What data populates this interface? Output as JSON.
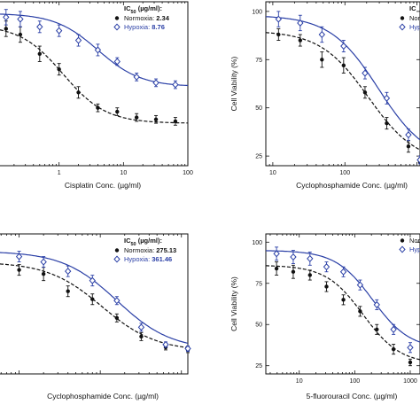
{
  "colors": {
    "normoxia": "#111111",
    "hypoxia": "#2a3fa6",
    "axis": "#111111"
  },
  "chart_data": [
    {
      "type": "scatter",
      "xlabel": "Cisplatin Conc. (µg/ml)",
      "ylabel": "",
      "xscale": "log",
      "xlim": [
        0.1,
        100
      ],
      "ylim": [
        20,
        105
      ],
      "xticks": [
        1,
        10,
        100
      ],
      "xtick_labels": [
        "1",
        "10",
        "100"
      ],
      "yticks": [],
      "ytick_labels": [],
      "legend": {
        "header": "IC",
        "header_sub": "50",
        "header_tail": " (µg/ml):",
        "placement": "top-right"
      },
      "series": [
        {
          "name": "Normoxia",
          "ic50": "2.34",
          "marker": "filled-circle",
          "x": [
            0.15,
            0.25,
            0.5,
            1,
            2,
            4,
            8,
            16,
            32,
            64
          ],
          "y": [
            91,
            88,
            78,
            70,
            58,
            50,
            48,
            45,
            44,
            43
          ],
          "err": [
            4,
            4,
            4,
            3,
            3,
            2,
            2,
            2,
            2,
            2
          ]
        },
        {
          "name": "Hypoxia",
          "ic50": "8.76",
          "marker": "open-diamond",
          "x": [
            0.15,
            0.25,
            0.5,
            1,
            2,
            4,
            8,
            16,
            32,
            64
          ],
          "y": [
            97,
            96,
            92,
            90,
            85,
            80,
            74,
            66,
            63,
            62
          ],
          "err": [
            4,
            4,
            3,
            3,
            3,
            3,
            2,
            2,
            2,
            2
          ]
        }
      ]
    },
    {
      "type": "scatter",
      "xlabel": "Cyclophosphamide Conc. (µg/ml)",
      "ylabel": "Cell Viability (%)",
      "xscale": "log",
      "xlim": [
        8,
        1100
      ],
      "ylim": [
        20,
        105
      ],
      "xticks": [
        10,
        100
      ],
      "xtick_labels": [
        "10",
        "100"
      ],
      "yticks": [
        25,
        50,
        75,
        100
      ],
      "ytick_labels": [
        "25",
        "50",
        "75",
        "100"
      ],
      "legend": {
        "header": "IC",
        "header_sub": "",
        "header_tail": "",
        "placement": "top-right"
      },
      "series": [
        {
          "name": "Normox",
          "ic50": "",
          "marker": "filled-circle",
          "x": [
            12,
            24,
            48,
            96,
            190,
            380,
            760,
            1100
          ],
          "y": [
            88,
            85,
            75,
            72,
            58,
            42,
            30,
            22
          ],
          "err": [
            3,
            3,
            4,
            4,
            3,
            3,
            3,
            2
          ]
        },
        {
          "name": "Hypox",
          "ic50": "",
          "marker": "open-diamond",
          "x": [
            12,
            24,
            48,
            96,
            190,
            380,
            760,
            1100
          ],
          "y": [
            96,
            94,
            88,
            82,
            68,
            55,
            36,
            23
          ],
          "err": [
            4,
            4,
            4,
            3,
            3,
            3,
            3,
            2
          ]
        }
      ]
    },
    {
      "type": "scatter",
      "xlabel": "Cyclophosphamide Conc. (µg/ml)",
      "ylabel": "",
      "xscale": "log",
      "xlim": [
        5,
        1200
      ],
      "ylim": [
        0,
        105
      ],
      "xticks": [
        10,
        100,
        1000
      ],
      "xtick_labels": [
        "",
        "",
        ""
      ],
      "yticks": [],
      "ytick_labels": [],
      "legend": {
        "header": "IC",
        "header_sub": "50",
        "header_tail": " (µg/ml):",
        "placement": "top-right"
      },
      "series": [
        {
          "name": "Normoxia",
          "ic50": "275.13",
          "marker": "filled-circle",
          "x": [
            5,
            10,
            20,
            40,
            80,
            160,
            320,
            640,
            1200
          ],
          "y": [
            82,
            78,
            75,
            62,
            56,
            42,
            28,
            20,
            18
          ],
          "err": [
            4,
            4,
            5,
            4,
            4,
            3,
            3,
            2,
            2
          ]
        },
        {
          "name": "Hypoxia",
          "ic50": "361.46",
          "marker": "open-diamond",
          "x": [
            5,
            10,
            20,
            40,
            80,
            160,
            320,
            640,
            1200
          ],
          "y": [
            90,
            88,
            84,
            77,
            70,
            55,
            35,
            22,
            19
          ],
          "err": [
            4,
            4,
            4,
            4,
            4,
            3,
            3,
            2,
            2
          ]
        }
      ]
    },
    {
      "type": "scatter",
      "xlabel": "5-fluorouracil Conc. (µg/ml)",
      "ylabel": "Cell Viability (%)",
      "xscale": "log",
      "xlim": [
        2.5,
        1500
      ],
      "ylim": [
        20,
        105
      ],
      "xticks": [
        10,
        100,
        1000
      ],
      "xtick_labels": [
        "10",
        "100",
        "1000"
      ],
      "yticks": [
        25,
        50,
        75,
        100
      ],
      "ytick_labels": [
        "25",
        "50",
        "75",
        "100"
      ],
      "legend": {
        "header": "",
        "header_sub": "",
        "header_tail": "",
        "placement": "top-right"
      },
      "series": [
        {
          "name": "Norm",
          "ic50": "",
          "marker": "filled-circle",
          "x": [
            3.9,
            7.8,
            15.6,
            31,
            62.5,
            125,
            250,
            500,
            1000
          ],
          "y": [
            84,
            82,
            80,
            73,
            65,
            58,
            47,
            35,
            27
          ],
          "err": [
            4,
            4,
            3,
            3,
            3,
            3,
            3,
            3,
            2
          ]
        },
        {
          "name": "Hypo",
          "ic50": "",
          "marker": "open-diamond",
          "x": [
            3.9,
            7.8,
            15.6,
            31,
            62.5,
            125,
            250,
            500,
            1000
          ],
          "y": [
            93,
            91,
            90,
            85,
            82,
            74,
            62,
            47,
            36
          ],
          "err": [
            4,
            4,
            4,
            3,
            3,
            3,
            3,
            3,
            3
          ]
        }
      ]
    }
  ]
}
